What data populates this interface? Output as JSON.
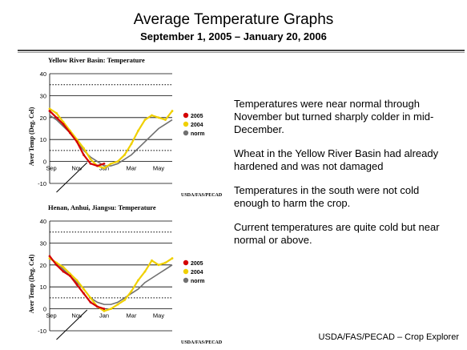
{
  "header": {
    "title": "Average Temperature Graphs",
    "subtitle": "September 1, 2005 – January 20, 2006"
  },
  "bullets": [
    "Temperatures were near normal through November but turned sharply colder in mid-December.",
    "Wheat in the Yellow River Basin had already hardened and was not damaged",
    "Temperatures in the south were not cold enough to harm the crop.",
    "Current temperatures are quite cold but near normal or above."
  ],
  "footer": "USDA/FAS/PECAD – Crop Explorer",
  "colors": {
    "2005": "#d40000",
    "2004": "#f0d000",
    "norm": "#707070"
  },
  "chart_data": [
    {
      "type": "line",
      "title": "Yellow River Basin: Temperature",
      "ylabel": "Aver Temp (Deg. Cel)",
      "credit": "USDA/FAS/PECAD",
      "categories": [
        "Sep",
        "Nov",
        "Jan",
        "Mar",
        "May"
      ],
      "yticks": [
        -10,
        0,
        10,
        20,
        30,
        40
      ],
      "ylim": [
        -10,
        40
      ],
      "xlim": [
        0,
        18
      ],
      "dotted_lines": [
        35,
        5
      ],
      "series": [
        {
          "name": "2005",
          "x": [
            0,
            1,
            2,
            3,
            4,
            5,
            6,
            7,
            8
          ],
          "y": [
            23,
            20,
            17,
            13,
            9,
            3,
            -1,
            -2,
            -1
          ]
        },
        {
          "name": "2004",
          "x": [
            0,
            1,
            2,
            3,
            4,
            5,
            6,
            7,
            8,
            9,
            10,
            11,
            12,
            13,
            14,
            15,
            16,
            17,
            18
          ],
          "y": [
            24,
            22,
            18,
            14,
            10,
            6,
            1,
            -2,
            -3,
            -1,
            0,
            3,
            8,
            14,
            19,
            21,
            20,
            19,
            23
          ]
        },
        {
          "name": "norm",
          "x": [
            0,
            1,
            2,
            3,
            4,
            5,
            6,
            7,
            8,
            9,
            10,
            11,
            12,
            13,
            14,
            15,
            16,
            17,
            18
          ],
          "y": [
            21,
            19,
            16,
            13,
            9,
            5,
            2,
            0,
            -2,
            -2,
            -1,
            1,
            3,
            6,
            9,
            12,
            15,
            17,
            19
          ]
        }
      ]
    },
    {
      "type": "line",
      "title": "Henan, Anhui, Jiangsu: Temperature",
      "ylabel": "Aver Temp (Deg. Cel)",
      "credit": "USDA/FAS/PECAD",
      "categories": [
        "Sep",
        "Nov",
        "Jan",
        "Mar",
        "May"
      ],
      "yticks": [
        -10,
        0,
        10,
        20,
        30,
        40
      ],
      "ylim": [
        -10,
        40
      ],
      "xlim": [
        0,
        18
      ],
      "dotted_lines": [
        35,
        5
      ],
      "series": [
        {
          "name": "2005",
          "x": [
            0,
            1,
            2,
            3,
            4,
            5,
            6,
            7,
            8
          ],
          "y": [
            24,
            20,
            17,
            15,
            11,
            7,
            3,
            1,
            0
          ]
        },
        {
          "name": "2004",
          "x": [
            0,
            1,
            2,
            3,
            4,
            5,
            6,
            7,
            8,
            9,
            10,
            11,
            12,
            13,
            14,
            15,
            16,
            17,
            18
          ],
          "y": [
            23,
            21,
            19,
            16,
            13,
            9,
            5,
            1,
            -1,
            0,
            2,
            4,
            8,
            13,
            17,
            22,
            20,
            21,
            23
          ]
        },
        {
          "name": "norm",
          "x": [
            0,
            1,
            2,
            3,
            4,
            5,
            6,
            7,
            8,
            9,
            10,
            11,
            12,
            13,
            14,
            15,
            16,
            17,
            18
          ],
          "y": [
            23,
            21,
            18,
            15,
            12,
            9,
            5,
            3,
            2,
            2,
            3,
            5,
            7,
            9,
            12,
            14,
            16,
            18,
            20
          ]
        }
      ]
    }
  ]
}
